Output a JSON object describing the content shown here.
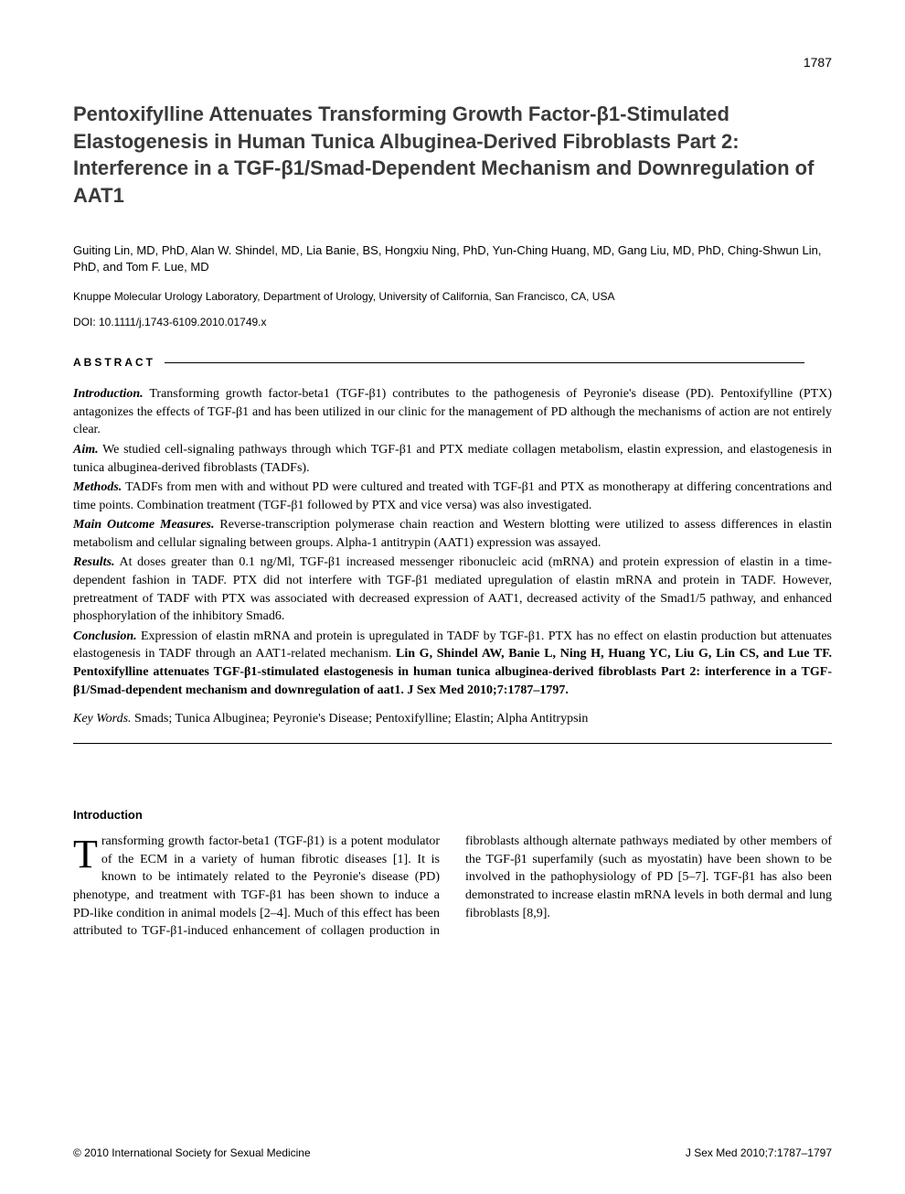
{
  "page_number": "1787",
  "title": "Pentoxifylline Attenuates Transforming Growth Factor-β1-Stimulated Elastogenesis in Human Tunica Albuginea-Derived Fibroblasts Part 2: Interference in a TGF-β1/Smad-Dependent Mechanism and Downregulation of AAT1",
  "authors": "Guiting Lin, MD, PhD, Alan W. Shindel, MD, Lia Banie, BS, Hongxiu Ning, PhD, Yun-Ching Huang, MD, Gang Liu, MD, PhD, Ching-Shwun Lin, PhD, and Tom F. Lue, MD",
  "affiliation": "Knuppe Molecular Urology Laboratory, Department of Urology, University of California, San Francisco, CA, USA",
  "doi": "DOI: 10.1111/j.1743-6109.2010.01749.x",
  "abstract_label": "ABSTRACT",
  "abstract": {
    "intro_label": "Introduction.",
    "intro_text": " Transforming growth factor-beta1 (TGF-β1) contributes to the pathogenesis of Peyronie's disease (PD). Pentoxifylline (PTX) antagonizes the effects of TGF-β1 and has been utilized in our clinic for the management of PD although the mechanisms of action are not entirely clear.",
    "aim_label": "Aim.",
    "aim_text": " We studied cell-signaling pathways through which TGF-β1 and PTX mediate collagen metabolism, elastin expression, and elastogenesis in tunica albuginea-derived fibroblasts (TADFs).",
    "methods_label": "Methods.",
    "methods_text": " TADFs from men with and without PD were cultured and treated with TGF-β1 and PTX as monotherapy at differing concentrations and time points. Combination treatment (TGF-β1 followed by PTX and vice versa) was also investigated.",
    "measures_label": "Main Outcome Measures.",
    "measures_text": " Reverse-transcription polymerase chain reaction and Western blotting were utilized to assess differences in elastin metabolism and cellular signaling between groups. Alpha-1 antitrypin (AAT1) expression was assayed.",
    "results_label": "Results.",
    "results_text": " At doses greater than 0.1 ng/Ml, TGF-β1 increased messenger ribonucleic acid (mRNA) and protein expression of elastin in a time-dependent fashion in TADF. PTX did not interfere with TGF-β1 mediated upregulation of elastin mRNA and protein in TADF. However, pretreatment of TADF with PTX was associated with decreased expression of AAT1, decreased activity of the Smad1/5 pathway, and enhanced phosphorylation of the inhibitory Smad6.",
    "conclusion_label": "Conclusion.",
    "conclusion_text": " Expression of elastin mRNA and protein is upregulated in TADF by TGF-β1. PTX has no effect on elastin production but attenuates elastogenesis in TADF through an AAT1-related mechanism. ",
    "citation": "Lin G, Shindel AW, Banie L, Ning H, Huang YC, Liu G, Lin CS, and Lue TF. Pentoxifylline attenuates TGF-β1-stimulated elastogenesis in human tunica albuginea-derived fibroblasts Part 2: interference in a TGF-β1/Smad-dependent mechanism and downregulation of aat1. J Sex Med 2010;7:1787–1797."
  },
  "keywords_label": "Key Words.",
  "keywords_text": " Smads; Tunica Albuginea; Peyronie's Disease; Pentoxifylline; Elastin; Alpha Antitrypsin",
  "intro_heading": "Introduction",
  "body": {
    "dropcap": "T",
    "para": "ransforming growth factor-beta1 (TGF-β1) is a potent modulator of the ECM in a variety of human fibrotic diseases [1]. It is known to be intimately related to the Peyronie's disease (PD) phenotype, and treatment with TGF-β1 has been shown to induce a PD-like condition in animal models [2–4]. Much of this effect has been attributed to TGF-β1-induced enhancement of collagen production in fibroblasts although alternate pathways mediated by other members of the TGF-β1 superfamily (such as myostatin) have been shown to be involved in the pathophysiology of PD [5–7]. TGF-β1 has also been demonstrated to increase elastin mRNA levels in both dermal and lung fibroblasts [8,9]."
  },
  "footer_left": "© 2010 International Society for Sexual Medicine",
  "footer_right": "J Sex Med 2010;7:1787–1797"
}
